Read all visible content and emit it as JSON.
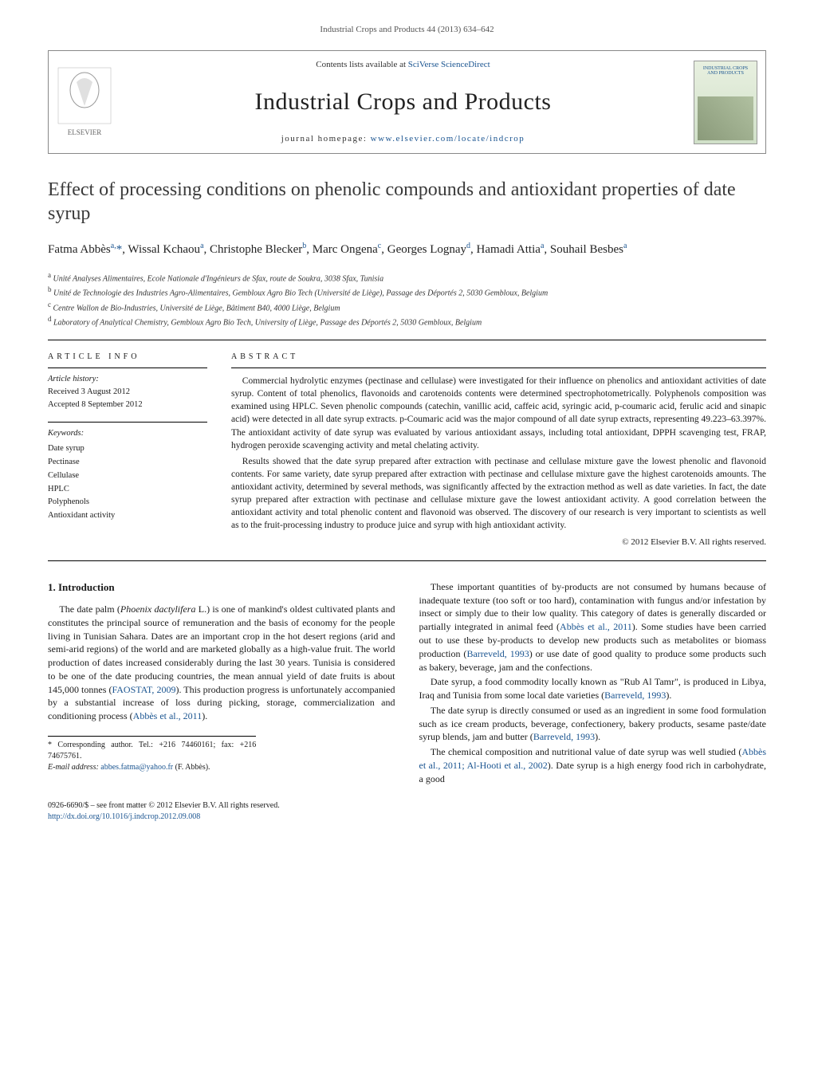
{
  "running_head": "Industrial Crops and Products 44 (2013) 634–642",
  "header": {
    "contents_prefix": "Contents lists available at ",
    "contents_link": "SciVerse ScienceDirect",
    "journal_name": "Industrial Crops and Products",
    "homepage_prefix": "journal homepage: ",
    "homepage_url": "www.elsevier.com/locate/indcrop",
    "cover_title": "INDUSTRIAL CROPS AND PRODUCTS"
  },
  "article": {
    "title": "Effect of processing conditions on phenolic compounds and antioxidant properties of date syrup",
    "authors_html": "Fatma Abbès<sup>a,</sup><span class='corr'>*</span>, Wissal Kchaou<sup>a</sup>, Christophe Blecker<sup>b</sup>, Marc Ongena<sup>c</sup>, Georges Lognay<sup>d</sup>, Hamadi Attia<sup>a</sup>, Souhail Besbes<sup>a</sup>",
    "affiliations": [
      {
        "sup": "a",
        "text": "Unité Analyses Alimentaires, Ecole Nationale d'Ingénieurs de Sfax, route de Soukra, 3038 Sfax, Tunisia"
      },
      {
        "sup": "b",
        "text": "Unité de Technologie des Industries Agro-Alimentaires, Gembloux Agro Bio Tech (Université de Liège), Passage des Déportés 2, 5030 Gembloux, Belgium"
      },
      {
        "sup": "c",
        "text": "Centre Wallon de Bio-Industries, Université de Liège, Bâtiment B40, 4000 Liège, Belgium"
      },
      {
        "sup": "d",
        "text": "Laboratory of Analytical Chemistry, Gembloux Agro Bio Tech, University of Liège, Passage des Déportés 2, 5030 Gembloux, Belgium"
      }
    ]
  },
  "info": {
    "section_label": "ARTICLE INFO",
    "history_label": "Article history:",
    "received": "Received 3 August 2012",
    "accepted": "Accepted 8 September 2012",
    "keywords_label": "Keywords:",
    "keywords": [
      "Date syrup",
      "Pectinase",
      "Cellulase",
      "HPLC",
      "Polyphenols",
      "Antioxidant activity"
    ]
  },
  "abstract": {
    "section_label": "ABSTRACT",
    "p1": "Commercial hydrolytic enzymes (pectinase and cellulase) were investigated for their influence on phenolics and antioxidant activities of date syrup. Content of total phenolics, flavonoids and carotenoids contents were determined spectrophotometrically. Polyphenols composition was examined using HPLC. Seven phenolic compounds (catechin, vanillic acid, caffeic acid, syringic acid, p-coumaric acid, ferulic acid and sinapic acid) were detected in all date syrup extracts. p-Coumaric acid was the major compound of all date syrup extracts, representing 49.223–63.397%. The antioxidant activity of date syrup was evaluated by various antioxidant assays, including total antioxidant, DPPH scavenging test, FRAP, hydrogen peroxide scavenging activity and metal chelating activity.",
    "p2": "Results showed that the date syrup prepared after extraction with pectinase and cellulase mixture gave the lowest phenolic and flavonoid contents. For same variety, date syrup prepared after extraction with pectinase and cellulase mixture gave the highest carotenoids amounts. The antioxidant activity, determined by several methods, was significantly affected by the extraction method as well as date varieties. In fact, the date syrup prepared after extraction with pectinase and cellulase mixture gave the lowest antioxidant activity. A good correlation between the antioxidant activity and total phenolic content and flavonoid was observed. The discovery of our research is very important to scientists as well as to the fruit-processing industry to produce juice and syrup with high antioxidant activity.",
    "copyright": "© 2012 Elsevier B.V. All rights reserved."
  },
  "body": {
    "h_intro": "1. Introduction",
    "p1_pre": "The date palm (",
    "p1_em": "Phoenix dactylifera",
    "p1_post": " L.) is one of mankind's oldest cultivated plants and constitutes the principal source of remuneration and the basis of economy for the people living in Tunisian Sahara. Dates are an important crop in the hot desert regions (arid and semi-arid regions) of the world and are marketed globally as a high-value fruit. The world production of dates increased considerably during the last 30 years. Tunisia is considered to be one of the date producing countries, the mean annual yield of date fruits is about 145,000 tonnes (",
    "p1_ref1": "FAOSTAT, 2009",
    "p1_mid": "). This production progress is unfortunately accompanied by a substantial increase of loss during picking, storage, commercialization and conditioning process (",
    "p1_ref2": "Abbès et al., 2011",
    "p1_end": ").",
    "p2_pre": "These important quantities of by-products are not consumed by humans because of inadequate texture (too soft or too hard), contamination with fungus and/or infestation by insect or simply due to their low quality. This category of dates is generally discarded or partially integrated in animal feed (",
    "p2_ref1": "Abbès et al., 2011",
    "p2_mid": "). Some studies have been carried out to use these by-products to develop new products such as metabolites or biomass production (",
    "p2_ref2": "Barreveld, 1993",
    "p2_end": ") or use date of good quality to produce some products such as bakery, beverage, jam and the confections.",
    "p3_pre": "Date syrup, a food commodity locally known as \"Rub Al Tamr\", is produced in Libya, Iraq and Tunisia from some local date varieties (",
    "p3_ref1": "Barreveld, 1993",
    "p3_end": ").",
    "p4_pre": "The date syrup is directly consumed or used as an ingredient in some food formulation such as ice cream products, beverage, confectionery, bakery products, sesame paste/date syrup blends, jam and butter (",
    "p4_ref1": "Barreveld, 1993",
    "p4_end": ").",
    "p5_pre": "The chemical composition and nutritional value of date syrup was well studied (",
    "p5_ref1": "Abbès et al., 2011; Al-Hooti et al., 2002",
    "p5_end": "). Date syrup is a high energy food rich in carbohydrate, a good"
  },
  "footnote": {
    "corr_label": "* Corresponding author. Tel.: +216 74460161; fax: +216 74675761.",
    "email_label": "E-mail address: ",
    "email": "abbes.fatma@yahoo.fr",
    "email_suffix": " (F. Abbès)."
  },
  "footer": {
    "line1": "0926-6690/$ – see front matter © 2012 Elsevier B.V. All rights reserved.",
    "doi_url": "http://dx.doi.org/10.1016/j.indcrop.2012.09.008"
  },
  "colors": {
    "link": "#1a5490",
    "text": "#1a1a1a",
    "rule": "#000000"
  }
}
